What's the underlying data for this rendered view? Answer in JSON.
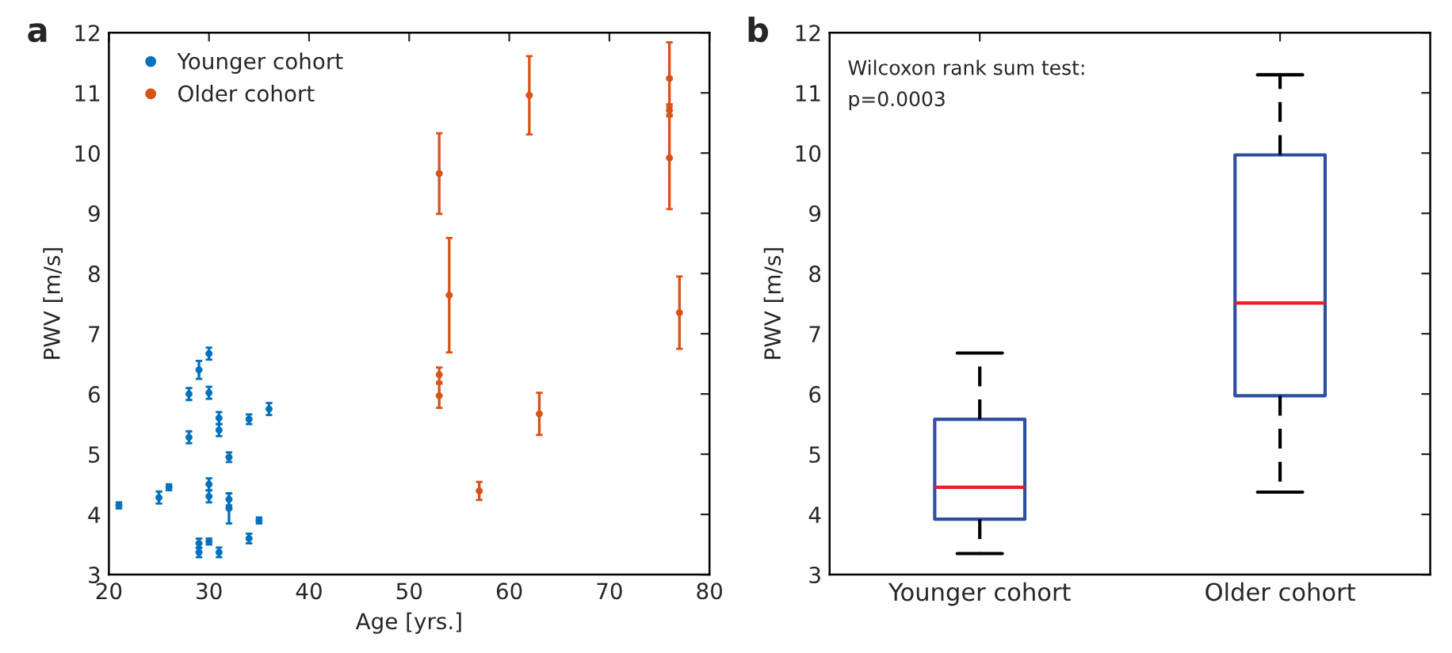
{
  "chart_data": [
    {
      "type": "scatter",
      "title": "a",
      "xlabel": "Age [yrs.]",
      "ylabel": "PWV [m/s]",
      "xlim": [
        20,
        80
      ],
      "xticks": [
        20,
        30,
        40,
        50,
        60,
        70,
        80
      ],
      "ylim": [
        3,
        12
      ],
      "yticks": [
        3,
        4,
        5,
        6,
        7,
        8,
        9,
        10,
        11,
        12
      ],
      "legend": "top left",
      "grid": false,
      "marker": "circle",
      "series": [
        {
          "name": "Younger cohort",
          "color": "#0072bd",
          "x": [
            21,
            25,
            26,
            28,
            28,
            29,
            29,
            29,
            30,
            30,
            30,
            30,
            30,
            31,
            31,
            31,
            32,
            32,
            32,
            34,
            34,
            35,
            36
          ],
          "values": [
            4.15,
            4.28,
            4.45,
            6.0,
            5.28,
            6.4,
            3.52,
            3.37,
            6.67,
            6.02,
            4.5,
            4.3,
            3.55,
            5.6,
            5.4,
            3.37,
            4.95,
            4.25,
            4.1,
            5.58,
            3.6,
            3.9,
            5.75
          ],
          "errors": [
            0.05,
            0.1,
            0.05,
            0.1,
            0.1,
            0.15,
            0.08,
            0.08,
            0.1,
            0.1,
            0.1,
            0.1,
            0.05,
            0.1,
            0.1,
            0.08,
            0.08,
            0.1,
            0.25,
            0.08,
            0.08,
            0.05,
            0.1
          ]
        },
        {
          "name": "Older cohort",
          "color": "#d95319",
          "x": [
            53,
            54,
            53,
            53,
            57,
            62,
            63,
            76,
            76,
            76,
            77
          ],
          "values": [
            9.66,
            7.64,
            6.32,
            5.97,
            4.39,
            10.96,
            5.67,
            11.24,
            10.71,
            9.92,
            7.35
          ],
          "errors": [
            0.67,
            0.95,
            0.12,
            0.2,
            0.15,
            0.65,
            0.35,
            0.6,
            0.1,
            0.85,
            0.6
          ]
        }
      ]
    },
    {
      "type": "box",
      "title": "b",
      "ylabel": "PWV [m/s]",
      "categories": [
        "Younger cohort",
        "Older cohort"
      ],
      "ylim": [
        3,
        12
      ],
      "yticks": [
        3,
        4,
        5,
        6,
        7,
        8,
        9,
        10,
        11,
        12
      ],
      "grid": false,
      "annotations": [
        "Wilcoxon rank sum test:\np=0.0003"
      ],
      "boxes": [
        {
          "low": 3.35,
          "q1": 3.92,
          "median": 4.45,
          "q3": 5.58,
          "high": 6.68
        },
        {
          "low": 4.37,
          "q1": 5.97,
          "median": 7.51,
          "q3": 9.97,
          "high": 11.3
        }
      ]
    }
  ]
}
